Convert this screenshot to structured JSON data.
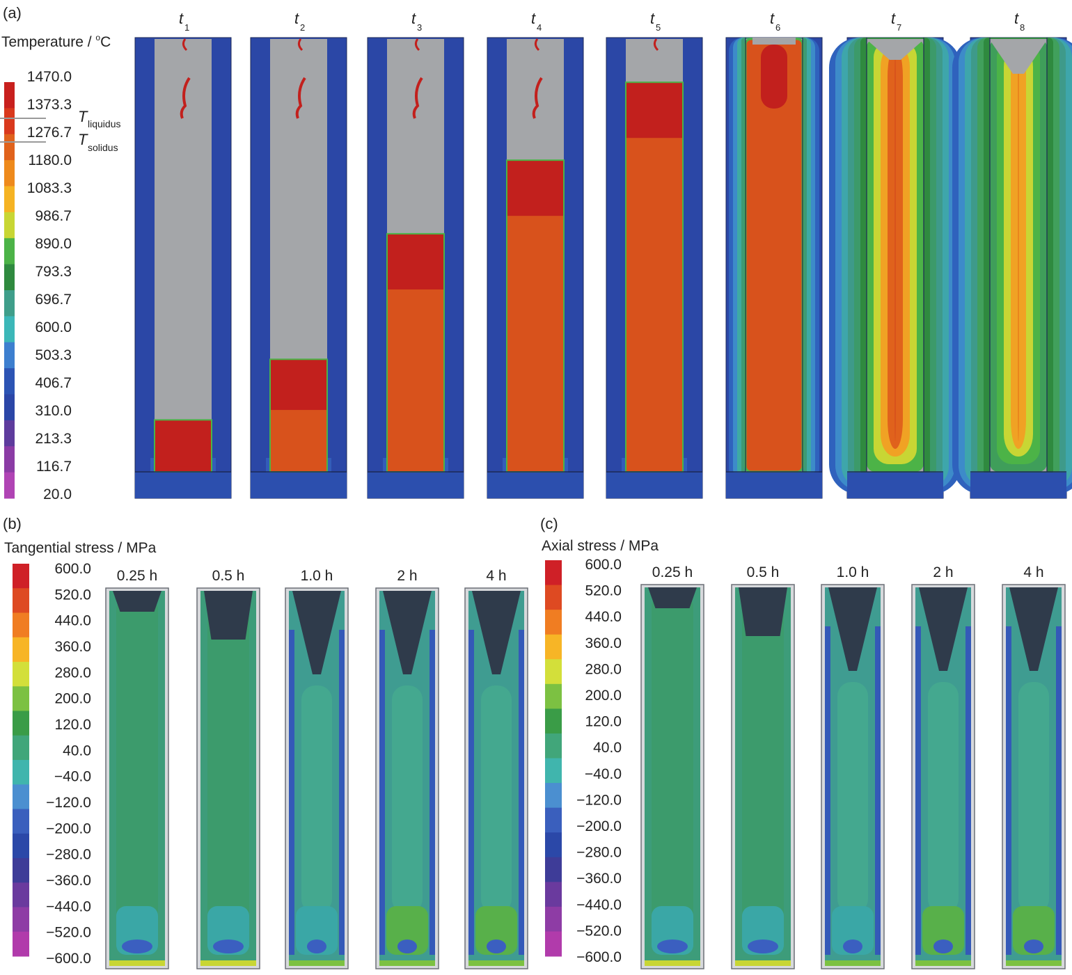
{
  "panel_a": {
    "letter": "(a)",
    "legend_title": "Temperature / ",
    "legend_unit_sup": "o",
    "legend_unit": "C",
    "legend_values": [
      "1470.0",
      "1373.3",
      "1276.7",
      "1180.0",
      "1083.3",
      "986.7",
      "890.0",
      "793.3",
      "696.7",
      "600.0",
      "503.3",
      "406.7",
      "310.0",
      "213.3",
      "116.7",
      "20.0"
    ],
    "liquidus_T": "T",
    "liquidus_sub": "liquidus",
    "solidus_T": "T",
    "solidus_sub": "solidus",
    "steps": [
      {
        "t": "t",
        "sub": "1"
      },
      {
        "t": "t",
        "sub": "2"
      },
      {
        "t": "t",
        "sub": "3"
      },
      {
        "t": "t",
        "sub": "4"
      },
      {
        "t": "t",
        "sub": "5"
      },
      {
        "t": "t",
        "sub": "6"
      },
      {
        "t": "t",
        "sub": "7"
      },
      {
        "t": "t",
        "sub": "8"
      }
    ],
    "fill_fraction": [
      0.12,
      0.26,
      0.55,
      0.72,
      0.9,
      1.0,
      1.0,
      1.0
    ],
    "colors": [
      "#c8201e",
      "#d9391d",
      "#e0621c",
      "#ee8a1c",
      "#f5b323",
      "#c8d634",
      "#4cb347",
      "#2f8a3f",
      "#3f9e8a",
      "#3cb7b8",
      "#3d7fcf",
      "#2c54b4",
      "#2b46a7",
      "#5e3c9d",
      "#8b3ca5",
      "#b044b4"
    ]
  },
  "panel_b": {
    "letter": "(b)",
    "legend_title": "Tangential stress / MPa",
    "legend_values": [
      "600.0",
      "520.0",
      "440.0",
      "360.0",
      "280.0",
      "200.0",
      "120.0",
      "40.0",
      "−40.0",
      "−120.0",
      "−200.0",
      "−280.0",
      "−360.0",
      "−440.0",
      "−520.0",
      "−600.0"
    ],
    "times": [
      "0.25 h",
      "0.5 h",
      "1.0 h",
      "2 h",
      "4 h"
    ]
  },
  "panel_c": {
    "letter": "(c)",
    "legend_title": "Axial stress / MPa",
    "legend_values": [
      "600.0",
      "520.0",
      "440.0",
      "360.0",
      "280.0",
      "200.0",
      "120.0",
      "40.0",
      "−40.0",
      "−120.0",
      "−200.0",
      "−280.0",
      "−360.0",
      "−440.0",
      "−520.0",
      "−600.0"
    ],
    "times": [
      "0.25 h",
      "0.5 h",
      "1.0 h",
      "2 h",
      "4 h"
    ]
  },
  "stress_colors": [
    "#cf2027",
    "#de4a22",
    "#f07d22",
    "#f7b526",
    "#d3df3a",
    "#7cc142",
    "#3a9c47",
    "#41a67a",
    "#40b5ad",
    "#4b8fd0",
    "#3a5fbd",
    "#2b48a8",
    "#3e3c98",
    "#6a3a9e",
    "#8e3ca5",
    "#b13bab"
  ]
}
